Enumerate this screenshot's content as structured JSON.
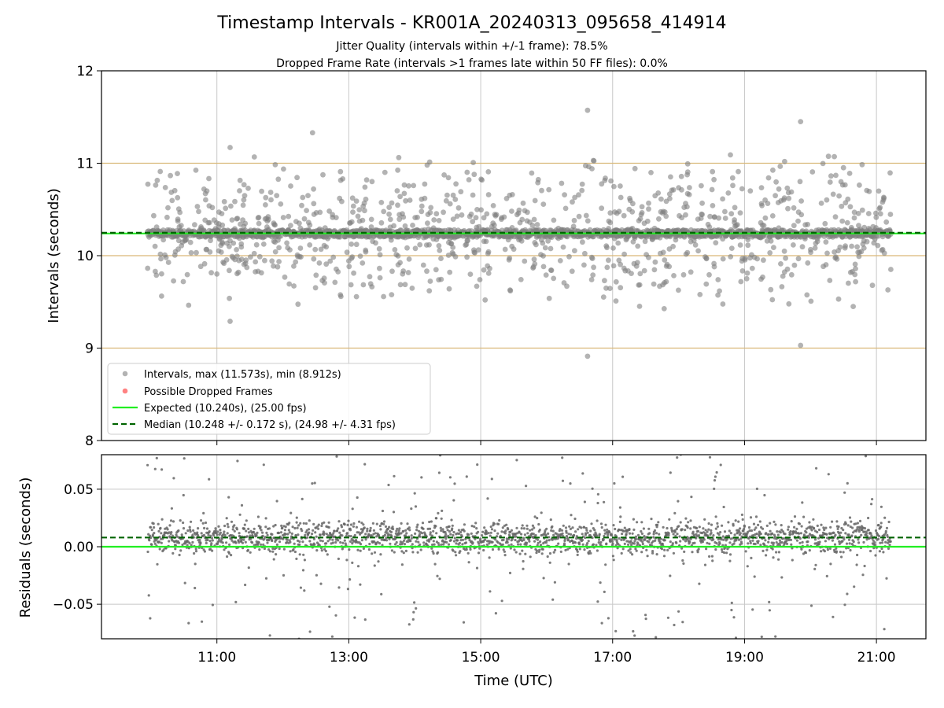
{
  "chart_data": [
    {
      "type": "scatter",
      "title": "Timestamp Intervals - KR001A_20240313_095658_414914",
      "subtitle_lines": [
        "Jitter Quality (intervals within +/-1 frame): 78.5%",
        "Dropped Frame Rate (intervals >1 frames late within 50 FF files): 0.0%"
      ],
      "xlabel": "",
      "ylabel": "Intervals (seconds)",
      "xlim_hours": [
        9.25,
        21.75
      ],
      "ylim": [
        8,
        12
      ],
      "yticks": [
        8,
        9,
        10,
        11,
        12
      ],
      "xticks_hours": [
        11,
        13,
        15,
        17,
        19,
        21
      ],
      "grid": true,
      "frame_lines": [
        9.0,
        10.0,
        11.0
      ],
      "expected": 10.24,
      "median": 10.248,
      "data_start_hour": 9.95,
      "data_end_hour": 21.22,
      "max_interval": 11.573,
      "min_interval": 8.912,
      "dense_band": [
        10.2,
        10.28
      ],
      "scatter_sd": 0.4,
      "outliers": [
        {
          "x": 16.62,
          "y": 11.573
        },
        {
          "x": 16.62,
          "y": 8.912
        },
        {
          "x": 19.85,
          "y": 11.45
        },
        {
          "x": 19.85,
          "y": 9.03
        },
        {
          "x": 12.45,
          "y": 11.33
        },
        {
          "x": 11.2,
          "y": 11.17
        },
        {
          "x": 11.2,
          "y": 9.29
        }
      ],
      "legend": {
        "position": "lower-left",
        "entries": [
          {
            "label": "Intervals, max (11.573s), min (8.912s)",
            "kind": "gray-dot"
          },
          {
            "label": "Possible Dropped Frames",
            "kind": "red-dot"
          },
          {
            "label": "Expected (10.240s), (25.00 fps)",
            "kind": "green-line"
          },
          {
            "label": "Median (10.248 +/- 0.172 s), (24.98 +/- 4.31 fps)",
            "kind": "darkgreen-dash"
          }
        ]
      },
      "dropped_frames": []
    },
    {
      "type": "scatter",
      "xlabel": "Time (UTC)",
      "ylabel": "Residuals (seconds)",
      "xlim_hours": [
        9.25,
        21.75
      ],
      "ylim": [
        -0.08,
        0.08
      ],
      "yticks": [
        -0.05,
        0.0,
        0.05
      ],
      "ytick_labels": [
        "−0.05",
        "0.00",
        "0.05"
      ],
      "xticks_hours": [
        11,
        13,
        15,
        17,
        19,
        21
      ],
      "xtick_labels": [
        "11:00",
        "13:00",
        "15:00",
        "17:00",
        "19:00",
        "21:00"
      ],
      "grid": true,
      "expected_residual": 0.0,
      "median_residual": 0.008,
      "band_center": 0.008,
      "band_sd": 0.007,
      "outlier_fraction": 0.1
    }
  ],
  "colors": {
    "intervals": "#808080",
    "dropped": "#ff4d4d",
    "expected": "#22ee22",
    "median": "#006400",
    "frame_lines": "#d9b878",
    "grid": "#c8c8c8"
  }
}
